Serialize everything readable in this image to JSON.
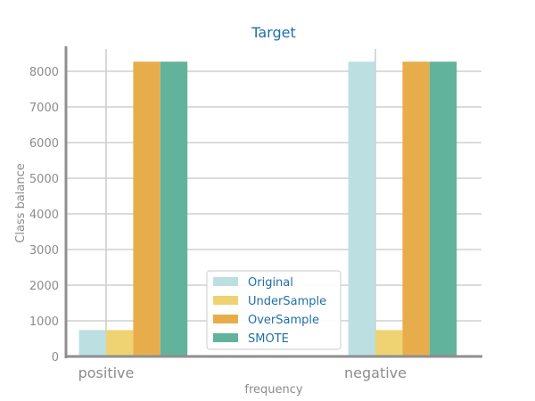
{
  "chart_data": {
    "type": "bar",
    "title": "Target",
    "xlabel": "frequency",
    "ylabel": "Class balance",
    "categories": [
      "positive",
      "negative"
    ],
    "ylim": [
      0,
      8700
    ],
    "yticks": [
      0,
      1000,
      2000,
      3000,
      4000,
      5000,
      6000,
      7000,
      8000
    ],
    "grid": true,
    "legend_position": "lower-center",
    "series": [
      {
        "name": "Original",
        "color": "#bcdfe1",
        "values": [
          740,
          8270
        ]
      },
      {
        "name": "UnderSample",
        "color": "#efd271",
        "values": [
          740,
          740
        ]
      },
      {
        "name": "OverSample",
        "color": "#e8ad4b",
        "values": [
          8270,
          8270
        ]
      },
      {
        "name": "SMOTE",
        "color": "#62b39c",
        "values": [
          8270,
          8270
        ]
      }
    ]
  }
}
